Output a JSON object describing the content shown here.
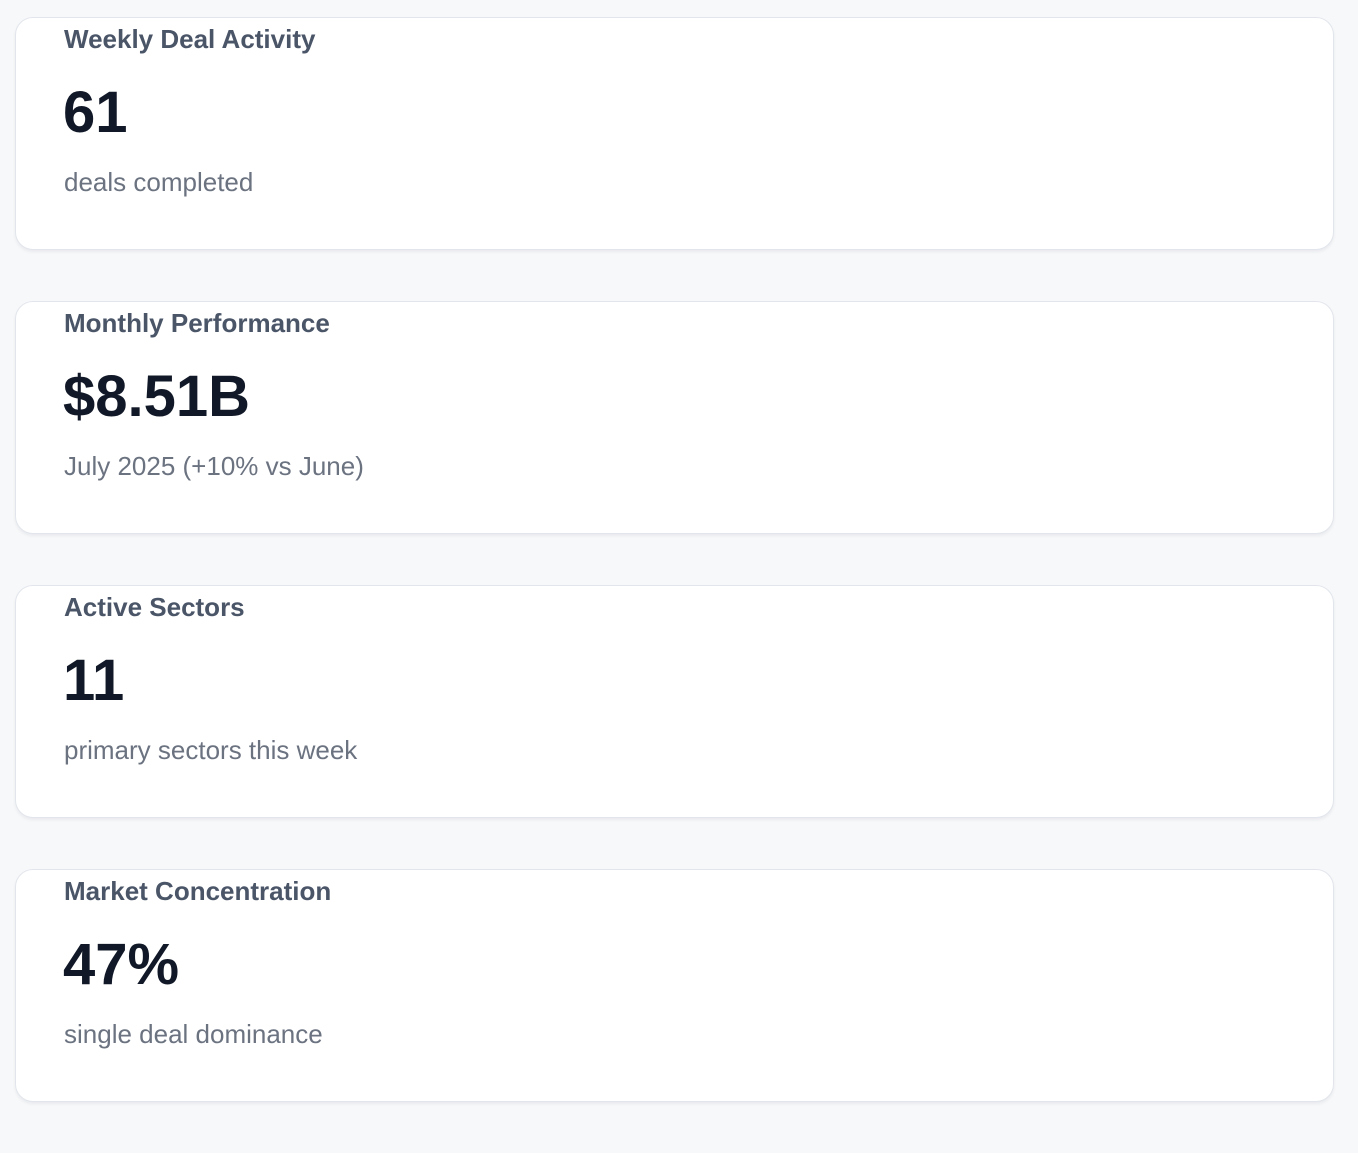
{
  "cards": [
    {
      "title": "Weekly Deal Activity",
      "value": "61",
      "subtitle": "deals completed"
    },
    {
      "title": "Monthly Performance",
      "value": "$8.51B",
      "subtitle": "July 2025 (+10% vs June)"
    },
    {
      "title": "Active Sectors",
      "value": "11",
      "subtitle": "primary sectors this week"
    },
    {
      "title": "Market Concentration",
      "value": "47%",
      "subtitle": "single deal dominance"
    }
  ]
}
